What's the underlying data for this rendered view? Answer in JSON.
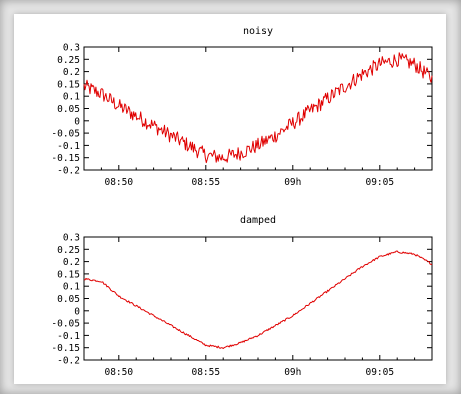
{
  "chart_data": [
    {
      "type": "line",
      "title": "noisy",
      "xlabel": "",
      "ylabel": "",
      "x_unit": "time (HH:MM)",
      "xlim": [
        "08:48",
        "09:08"
      ],
      "ylim": [
        -0.2,
        0.3
      ],
      "xticks": [
        "08:50",
        "08:55",
        "09h",
        "09:05"
      ],
      "yticks": [
        "0.3",
        "0.25",
        "0.2",
        "0.15",
        "0.1",
        "0.05",
        "0",
        "-0.05",
        "-0.1",
        "-0.15",
        "-0.2"
      ],
      "grid": false,
      "series": [
        {
          "color": "#e00000",
          "x": [
            "08:48",
            "08:49",
            "08:50",
            "08:51",
            "08:52",
            "08:53",
            "08:54",
            "08:55",
            "08:56",
            "08:57",
            "08:58",
            "08:59",
            "09:00",
            "09:01",
            "09:02",
            "09:03",
            "09:04",
            "09:05",
            "09:06",
            "09:07",
            "09:08"
          ],
          "y": [
            0.14,
            0.11,
            0.06,
            0.02,
            -0.02,
            -0.06,
            -0.1,
            -0.14,
            -0.15,
            -0.13,
            -0.1,
            -0.06,
            -0.01,
            0.04,
            0.09,
            0.14,
            0.19,
            0.23,
            0.25,
            0.23,
            0.17
          ],
          "noise_amplitude": 0.03
        }
      ]
    },
    {
      "type": "line",
      "title": "damped",
      "xlabel": "",
      "ylabel": "",
      "x_unit": "time (HH:MM)",
      "xlim": [
        "08:48",
        "09:08"
      ],
      "ylim": [
        -0.2,
        0.3
      ],
      "xticks": [
        "08:50",
        "08:55",
        "09h",
        "09:05"
      ],
      "yticks": [
        "0.3",
        "0.25",
        "0.2",
        "0.15",
        "0.1",
        "0.05",
        "0",
        "-0.05",
        "-0.1",
        "-0.15",
        "-0.2"
      ],
      "grid": false,
      "series": [
        {
          "color": "#e00000",
          "x": [
            "08:48",
            "08:49",
            "08:50",
            "08:51",
            "08:52",
            "08:53",
            "08:54",
            "08:55",
            "08:56",
            "08:57",
            "08:58",
            "08:59",
            "09:00",
            "09:01",
            "09:02",
            "09:03",
            "09:04",
            "09:05",
            "09:06",
            "09:07",
            "09:08"
          ],
          "y": [
            0.13,
            0.12,
            0.06,
            0.02,
            -0.02,
            -0.06,
            -0.1,
            -0.14,
            -0.15,
            -0.13,
            -0.1,
            -0.06,
            -0.02,
            0.03,
            0.08,
            0.13,
            0.18,
            0.22,
            0.24,
            0.23,
            0.19
          ],
          "noise_amplitude": 0.004
        }
      ]
    }
  ]
}
